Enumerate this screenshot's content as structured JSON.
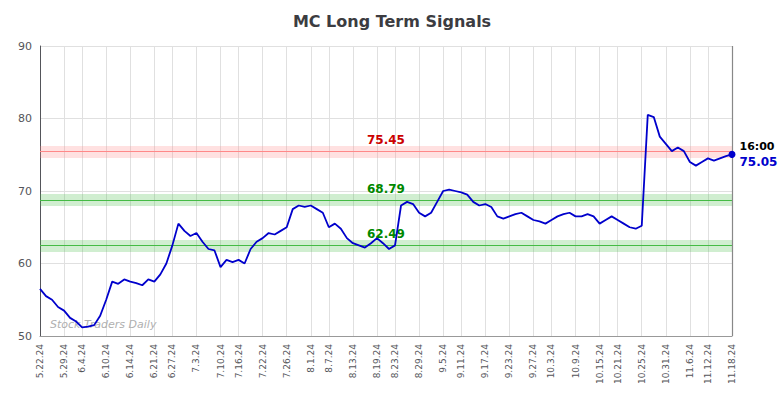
{
  "chart_data": {
    "type": "line",
    "title": "MC Long Term Signals",
    "categories": [
      "5.22.24",
      null,
      null,
      null,
      "5.29.24",
      null,
      null,
      "6.4.24",
      null,
      null,
      null,
      "6.10.24",
      null,
      null,
      null,
      "6.14.24",
      null,
      null,
      null,
      "6.21.24",
      null,
      null,
      "6.27.24",
      null,
      null,
      null,
      "7.3.24",
      null,
      null,
      null,
      "7.10.24",
      null,
      null,
      "7.16.24",
      null,
      null,
      null,
      "7.22.24",
      null,
      null,
      null,
      "7.26.24",
      null,
      null,
      null,
      "8.1.24",
      null,
      null,
      "8.7.24",
      null,
      null,
      null,
      "8.13.24",
      null,
      null,
      null,
      "8.19.24",
      null,
      null,
      "8.23.24",
      null,
      null,
      null,
      "8.29.24",
      null,
      null,
      null,
      "9.5.24",
      null,
      null,
      "9.11.24",
      null,
      null,
      null,
      "9.17.24",
      null,
      null,
      null,
      "9.23.24",
      null,
      null,
      null,
      "9.27.24",
      null,
      null,
      "10.3.24",
      null,
      null,
      null,
      "10.9.24",
      null,
      null,
      null,
      "10.15.24",
      null,
      null,
      "10.21.24",
      null,
      null,
      null,
      "10.25.24",
      null,
      null,
      null,
      "10.31.24",
      null,
      null,
      null,
      "11.6.24",
      null,
      null,
      "11.12.24",
      null,
      null,
      null,
      "11.18.24"
    ],
    "values": [
      56.5,
      55.5,
      55.0,
      54.0,
      53.5,
      52.5,
      52.0,
      51.2,
      51.3,
      51.5,
      52.8,
      55.0,
      57.5,
      57.2,
      57.8,
      57.5,
      57.3,
      57.0,
      57.8,
      57.5,
      58.5,
      60.0,
      62.5,
      65.5,
      64.5,
      63.8,
      64.2,
      63.0,
      62.0,
      61.8,
      59.5,
      60.5,
      60.2,
      60.5,
      60.0,
      62.0,
      63.0,
      63.5,
      64.2,
      64.0,
      64.5,
      65.0,
      67.5,
      68.0,
      67.8,
      68.0,
      67.5,
      67.0,
      65.0,
      65.5,
      64.8,
      63.5,
      62.8,
      62.5,
      62.2,
      62.8,
      63.5,
      62.8,
      62.0,
      62.5,
      68.0,
      68.5,
      68.2,
      67.0,
      66.5,
      67.0,
      68.5,
      70.0,
      70.2,
      70.0,
      69.8,
      69.5,
      68.5,
      68.0,
      68.2,
      67.8,
      66.5,
      66.2,
      66.5,
      66.8,
      67.0,
      66.5,
      66.0,
      65.8,
      65.5,
      66.0,
      66.5,
      66.8,
      67.0,
      66.5,
      66.5,
      66.8,
      66.5,
      65.5,
      66.0,
      66.5,
      66.0,
      65.5,
      65.0,
      64.8,
      65.2,
      80.5,
      80.2,
      77.5,
      76.5,
      75.5,
      76.0,
      75.5,
      74.0,
      73.5,
      74.0,
      74.5,
      74.2,
      74.5,
      74.8,
      75.05
    ],
    "color": "#0000cc",
    "ylim": [
      50,
      90
    ],
    "yticks": [
      50,
      60,
      70,
      80,
      90
    ],
    "grid": true,
    "hlines": [
      {
        "value": 75.45,
        "label": "75.45",
        "color": "#ff8888",
        "label_color": "#cc0000"
      },
      {
        "value": 68.79,
        "label": "68.79",
        "color": "#44bb44",
        "label_color": "#008800"
      },
      {
        "value": 62.49,
        "label": "62.49",
        "color": "#44bb44",
        "label_color": "#008800"
      }
    ],
    "annotations": [
      {
        "text": "16:00",
        "color": "#000000"
      },
      {
        "text": "75.05",
        "color": "#0000cc"
      }
    ],
    "watermark": "Stock Traders Daily"
  }
}
